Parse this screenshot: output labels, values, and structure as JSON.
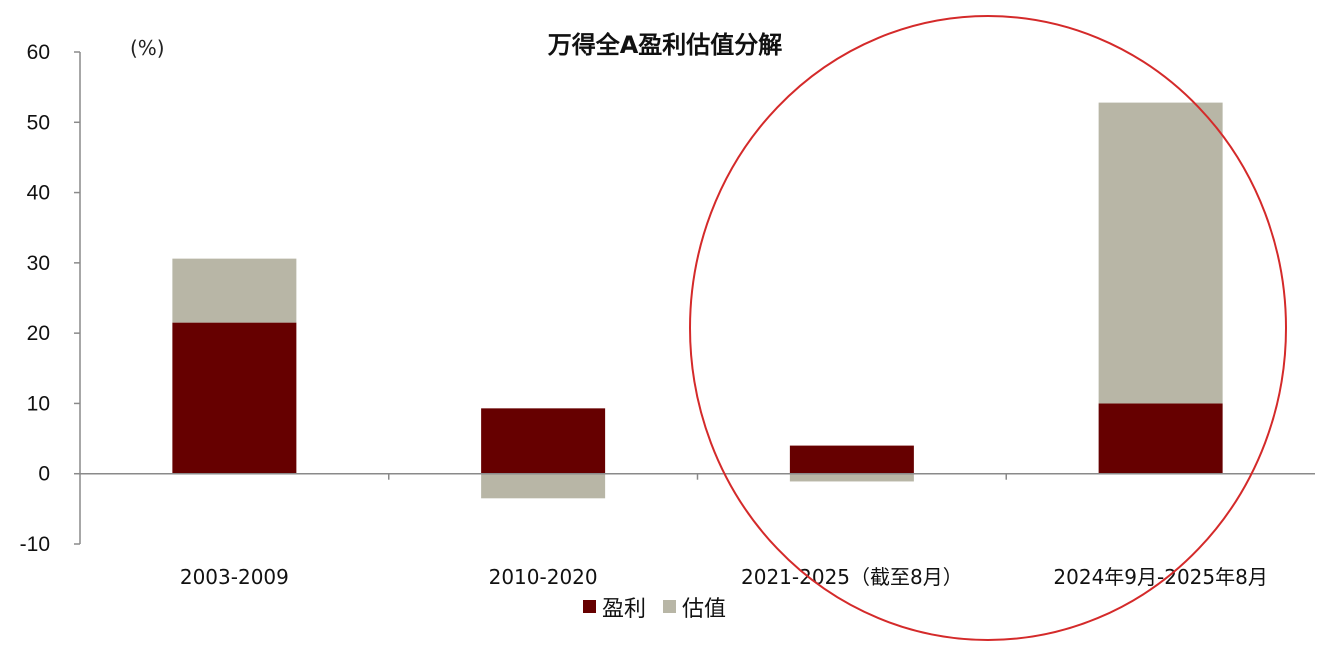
{
  "chart_data": {
    "type": "bar",
    "stacked": true,
    "title": "万得全A盈利估值分解",
    "unit_label": "(%)",
    "xlabel": "",
    "ylabel": "",
    "ylim": [
      -10,
      60
    ],
    "yticks": [
      "60",
      "50",
      "40",
      "30",
      "20",
      "10",
      "0",
      "-10"
    ],
    "grid": false,
    "legend_position": "bottom-center",
    "categories": [
      "2003-2009",
      "2010-2020",
      "2021-2025（截至8月）",
      "2024年9月-2025年8月"
    ],
    "series": [
      {
        "name": "盈利",
        "color": "#660000",
        "values": [
          21.5,
          9.3,
          4.0,
          10.0
        ]
      },
      {
        "name": "估值",
        "color": "#b8b6a6",
        "values": [
          9.1,
          -3.5,
          -1.1,
          42.8
        ]
      }
    ],
    "annotation": {
      "shape": "circle-outline",
      "color": "#d42a2a",
      "highlights": [
        "2021-2025（截至8月）",
        "2024年9月-2025年8月"
      ]
    }
  }
}
